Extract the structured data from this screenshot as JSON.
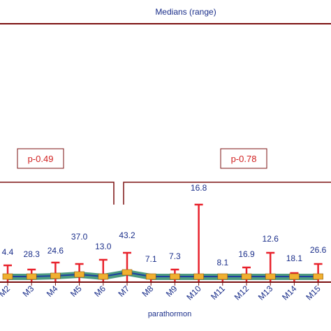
{
  "chart_data": {
    "type": "line",
    "title": "Medians (range)",
    "xlabel": "parathormon",
    "categories": [
      "M2",
      "M3",
      "M4",
      "M5",
      "M6",
      "M7",
      "M8",
      "M9",
      "M10",
      "M11",
      "M12",
      "M13",
      "M14",
      "M15"
    ],
    "labels": [
      "4.4",
      "28.3",
      "24.6",
      "37.0",
      "13.0",
      "43.2",
      "7.1",
      "7.3",
      "16.8",
      "8.1",
      "16.9",
      "12.6",
      "18.1",
      "26.6"
    ],
    "annotations": [
      {
        "text": "p-0.49",
        "span": [
          "M2",
          "M6"
        ]
      },
      {
        "text": "p-0.78",
        "span": [
          "M7",
          "M15"
        ]
      }
    ],
    "colors": {
      "frame": "#7b1010",
      "error_bar": "#e8222c",
      "median_line": "#1f3fa0",
      "band": "#2e8a6a",
      "box_fill": "#f0b030",
      "label_text": "#1a2e8a",
      "annotation_text": "#d12020"
    }
  }
}
